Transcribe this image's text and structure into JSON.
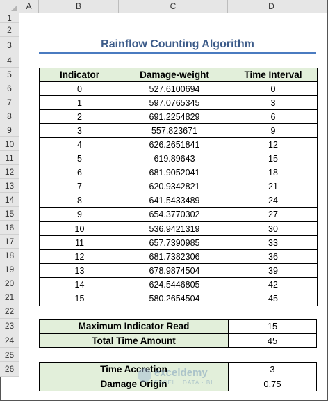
{
  "columns": [
    "A",
    "B",
    "C",
    "D"
  ],
  "rows": [
    "1",
    "2",
    "3",
    "4",
    "5",
    "6",
    "7",
    "8",
    "9",
    "10",
    "11",
    "12",
    "13",
    "14",
    "15",
    "16",
    "17",
    "18",
    "19",
    "20",
    "21",
    "22",
    "23",
    "24",
    "25",
    "26"
  ],
  "title": "Rainflow Counting Algorithm",
  "table": {
    "headers": [
      "Indicator",
      "Damage-weight",
      "Time Interval"
    ],
    "rows": [
      [
        "0",
        "527.6100694",
        "0"
      ],
      [
        "1",
        "597.0765345",
        "3"
      ],
      [
        "2",
        "691.2254829",
        "6"
      ],
      [
        "3",
        "557.823671",
        "9"
      ],
      [
        "4",
        "626.2651841",
        "12"
      ],
      [
        "5",
        "619.89643",
        "15"
      ],
      [
        "6",
        "681.9052041",
        "18"
      ],
      [
        "7",
        "620.9342821",
        "21"
      ],
      [
        "8",
        "641.5433489",
        "24"
      ],
      [
        "9",
        "654.3770302",
        "27"
      ],
      [
        "10",
        "536.9421319",
        "30"
      ],
      [
        "11",
        "657.7390985",
        "33"
      ],
      [
        "12",
        "681.7382306",
        "36"
      ],
      [
        "13",
        "678.9874504",
        "39"
      ],
      [
        "14",
        "624.5446805",
        "42"
      ],
      [
        "15",
        "580.2654504",
        "45"
      ]
    ]
  },
  "summary1": [
    {
      "label": "Maximum Indicator Read",
      "value": "15"
    },
    {
      "label": "Total Time Amount",
      "value": "45"
    }
  ],
  "summary2": [
    {
      "label": "Time Accretion",
      "value": "3"
    },
    {
      "label": "Damage Origin",
      "value": "0.75"
    }
  ],
  "watermark": {
    "name": "exceldemy",
    "sub": "EXCEL · DATA · BI"
  },
  "colors": {
    "header_fill": "#e2efda",
    "title": "#3d5c8a",
    "title_underline": "#4a7bc0"
  }
}
